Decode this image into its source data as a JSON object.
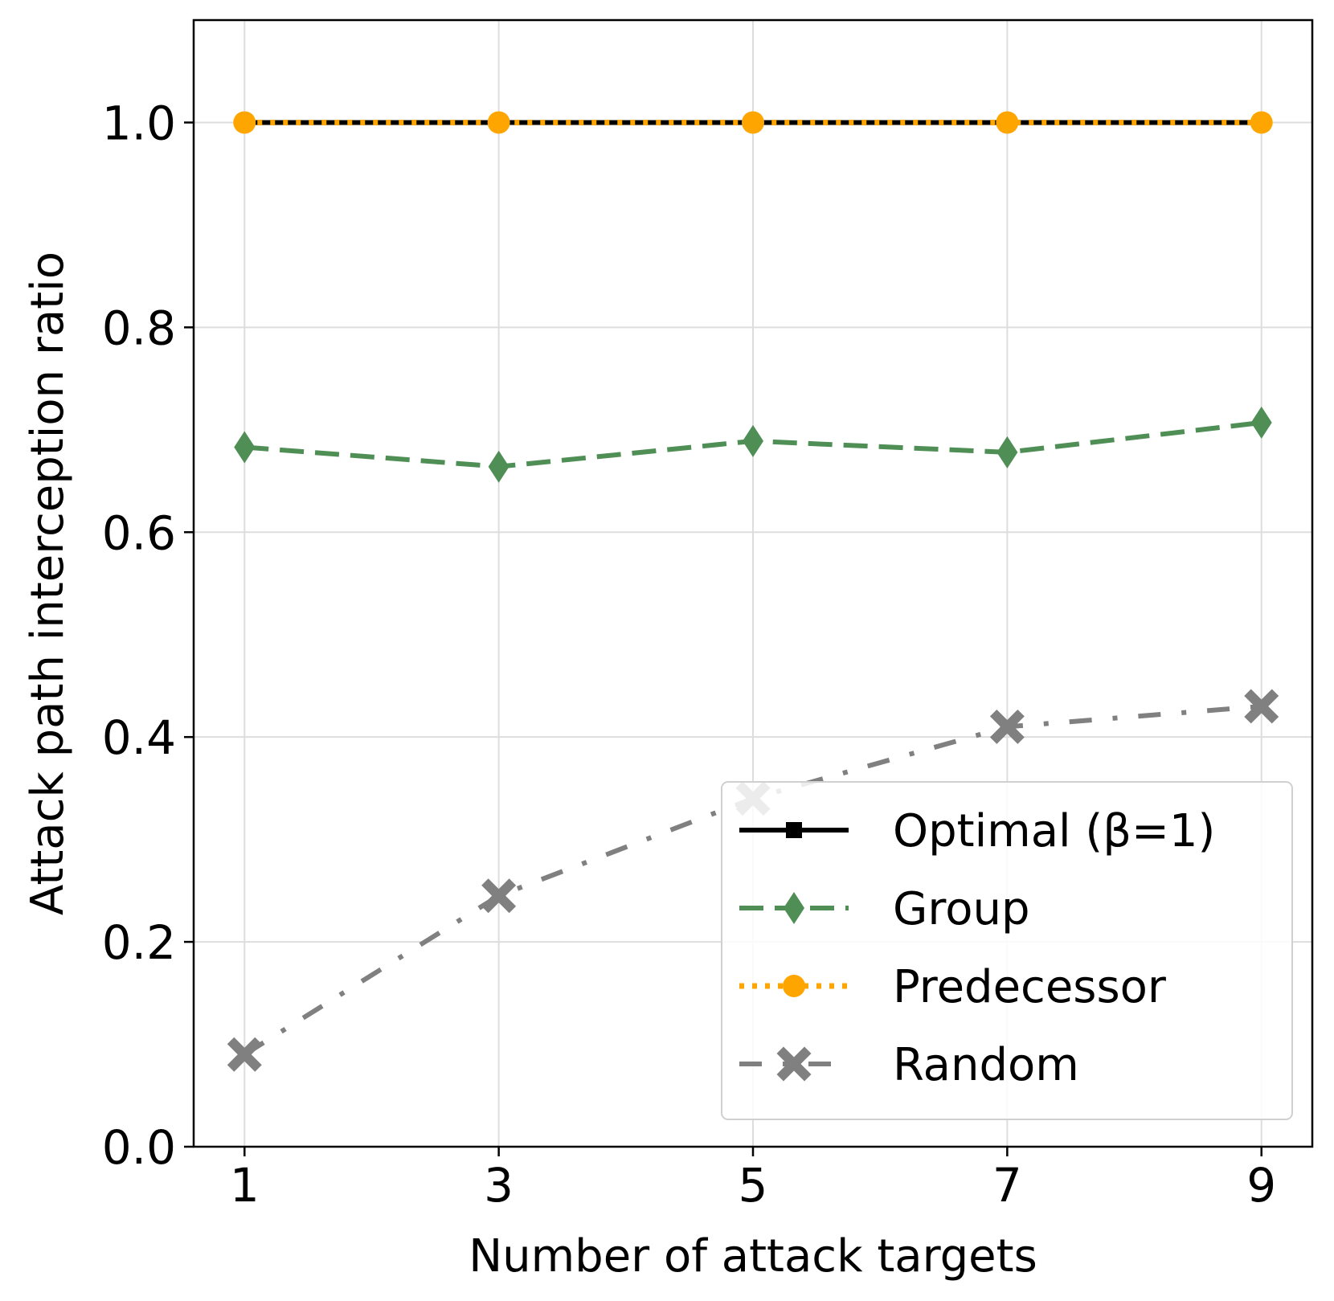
{
  "chart_data": {
    "type": "line",
    "title": "",
    "xlabel": "Number of attack targets",
    "ylabel": "Attack path interception ratio",
    "x": [
      1,
      3,
      5,
      7,
      9
    ],
    "xlim": [
      0.6,
      9.4
    ],
    "ylim": [
      0.0,
      1.1
    ],
    "xticks": [
      "1",
      "3",
      "5",
      "7",
      "9"
    ],
    "yticks": [
      "0.0",
      "0.2",
      "0.4",
      "0.6",
      "0.8",
      "1.0"
    ],
    "grid": true,
    "legend_position": "lower-right",
    "series": [
      {
        "name": "Random",
        "values": [
          0.09,
          0.245,
          0.34,
          0.41,
          0.43
        ],
        "color": "#808080",
        "linestyle": "dashdot",
        "marker": "x"
      },
      {
        "name": "Group",
        "values": [
          0.683,
          0.664,
          0.689,
          0.678,
          0.707
        ],
        "color": "#4f8f55",
        "linestyle": "dashed",
        "marker": "diamond"
      },
      {
        "name": "Optimal (β=1)",
        "values": [
          1.0,
          1.0,
          1.0,
          1.0,
          1.0
        ],
        "color": "#000000",
        "linestyle": "solid",
        "marker": "square"
      },
      {
        "name": "Predecessor",
        "values": [
          1.0,
          1.0,
          1.0,
          1.0,
          1.0
        ],
        "color": "#ffa500",
        "linestyle": "dotted",
        "marker": "circle"
      }
    ],
    "legend_order": [
      "Optimal (β=1)",
      "Group",
      "Predecessor",
      "Random"
    ]
  }
}
